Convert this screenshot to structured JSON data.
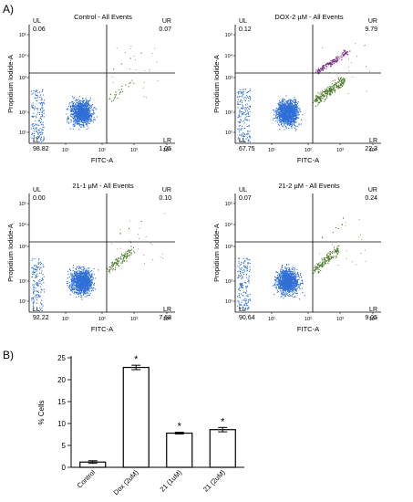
{
  "panel_a_label": "A)",
  "panel_b_label": "B)",
  "chart_data": [
    {
      "type": "scatter",
      "title": "Control - All Events",
      "xlabel": "FITC-A",
      "ylabel": "Propidium Iodide-A",
      "x_ticks": [
        "10¹",
        "10²",
        "10³",
        "10⁴",
        "10⁵"
      ],
      "y_ticks": [
        "10⁵",
        "10⁴",
        "10³",
        "10²",
        "10¹"
      ],
      "quadrants": {
        "UL": {
          "label": "UL",
          "value": "0.06"
        },
        "UR": {
          "label": "UR",
          "value": "0.07"
        },
        "LL": {
          "label": "LL",
          "value": "98.82"
        },
        "LR": {
          "label": "LR",
          "value": "1.05"
        }
      },
      "colors": {
        "main": "#2f6fd6",
        "green": "#4b7a2a",
        "purple": "#7a2a8a"
      }
    },
    {
      "type": "scatter",
      "title": "DOX-2 µM - All Events",
      "xlabel": "FITC-A",
      "ylabel": "Propidium Iodide-A",
      "x_ticks": [
        "10¹",
        "10²",
        "10³",
        "10⁴",
        "10⁵"
      ],
      "y_ticks": [
        "10⁵",
        "10⁴",
        "10³",
        "10²",
        "10¹"
      ],
      "quadrants": {
        "UL": {
          "label": "UL",
          "value": "0.12"
        },
        "UR": {
          "label": "UR",
          "value": "9.79"
        },
        "LL": {
          "label": "LL",
          "value": "67.75"
        },
        "LR": {
          "label": "LR",
          "value": "22.3"
        }
      }
    },
    {
      "type": "scatter",
      "title": "21-1 µM - All Events",
      "xlabel": "FITC-A",
      "ylabel": "Propidium Iodide-A",
      "x_ticks": [
        "10¹",
        "10²",
        "10³",
        "10⁴",
        "10⁵"
      ],
      "y_ticks": [
        "10⁵",
        "10⁴",
        "10³",
        "10²",
        "10¹"
      ],
      "quadrants": {
        "UL": {
          "label": "UL",
          "value": "0.00"
        },
        "UR": {
          "label": "UR",
          "value": "0.10"
        },
        "LL": {
          "label": "LL",
          "value": "92.22"
        },
        "LR": {
          "label": "LR",
          "value": "7.68"
        }
      }
    },
    {
      "type": "scatter",
      "title": "21-2 µM - All Events",
      "xlabel": "FITC-A",
      "ylabel": "Propidium Iodide-A",
      "x_ticks": [
        "10¹",
        "10²",
        "10³",
        "10⁴",
        "10⁵"
      ],
      "y_ticks": [
        "10⁵",
        "10⁴",
        "10³",
        "10²",
        "10¹"
      ],
      "quadrants": {
        "UL": {
          "label": "UL",
          "value": "0.07"
        },
        "UR": {
          "label": "UR",
          "value": "0.24"
        },
        "LL": {
          "label": "LL",
          "value": "90.64"
        },
        "LR": {
          "label": "LR",
          "value": "9.05"
        }
      }
    },
    {
      "type": "bar",
      "categories": [
        "Control",
        "Dox (2uM)",
        "21 (1uM)",
        "21 (2uM)"
      ],
      "values": [
        1.2,
        22.8,
        7.8,
        8.6
      ],
      "errors": [
        0.3,
        0.5,
        0.2,
        0.5
      ],
      "significance": [
        "",
        "*",
        "*",
        "*"
      ],
      "ylabel": "% Cells",
      "ylim": [
        0,
        25
      ],
      "yticks": [
        0,
        5,
        10,
        15,
        20,
        25
      ]
    }
  ]
}
